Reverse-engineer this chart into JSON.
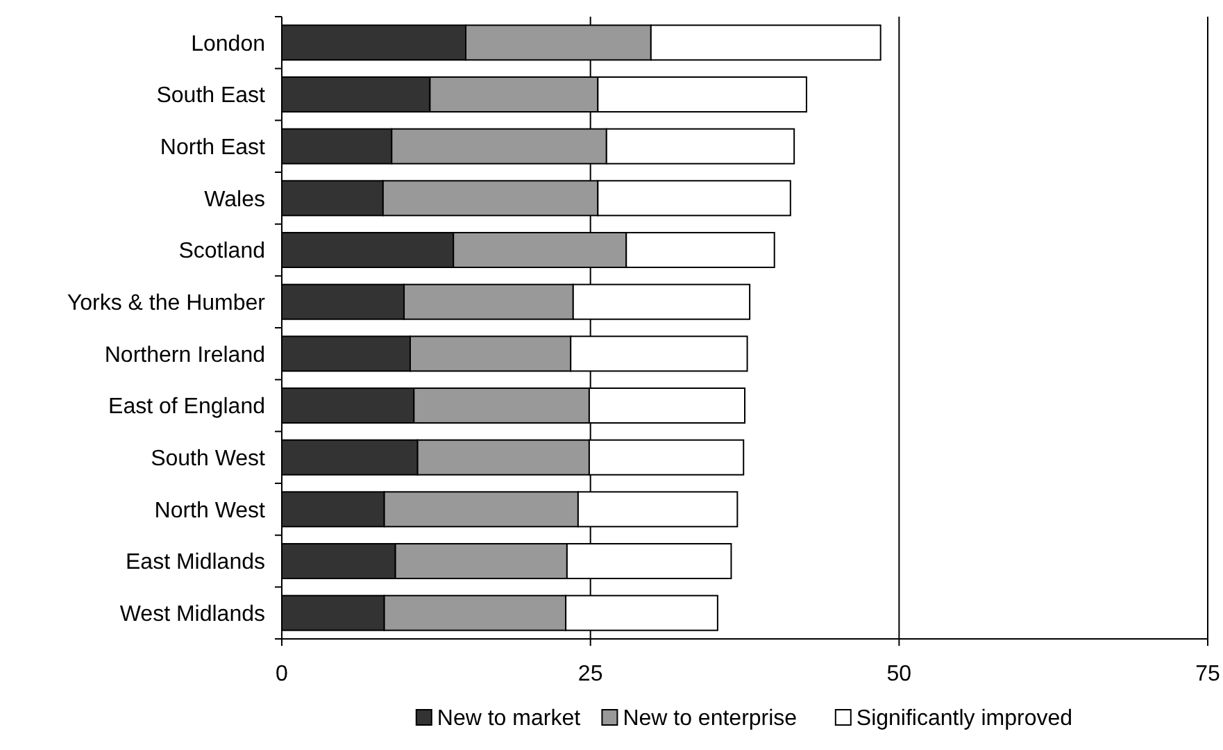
{
  "chart_data": {
    "type": "bar",
    "orientation": "horizontal",
    "stacked": true,
    "categories": [
      "London",
      "South East",
      "North East",
      "Wales",
      "Scotland",
      "Yorks & the Humber",
      "Northern Ireland",
      "East of England",
      "South West",
      "North West",
      "East Midlands",
      "West Midlands"
    ],
    "series": [
      {
        "name": "New to market",
        "color": "#333333",
        "values": [
          14.9,
          12.0,
          8.9,
          8.2,
          13.9,
          9.9,
          10.4,
          10.7,
          11.0,
          8.3,
          9.2,
          8.3
        ]
      },
      {
        "name": "New to enterprise",
        "color": "#999999",
        "values": [
          15.0,
          13.6,
          17.4,
          17.4,
          14.0,
          13.7,
          13.0,
          14.2,
          13.9,
          15.7,
          13.9,
          14.7
        ]
      },
      {
        "name": "Significantly improved",
        "color": "#ffffff",
        "values": [
          18.6,
          16.9,
          15.2,
          15.6,
          12.0,
          14.3,
          14.3,
          12.6,
          12.5,
          12.9,
          13.3,
          12.3
        ]
      }
    ],
    "xlim": [
      0,
      75
    ],
    "xticks": [
      0,
      25,
      50,
      75
    ],
    "grid": "x",
    "legend": "bottom"
  }
}
